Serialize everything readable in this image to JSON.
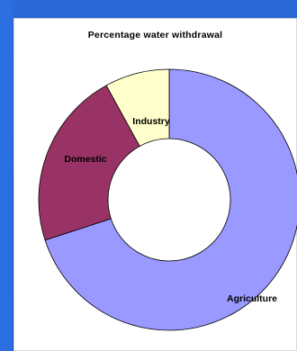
{
  "chart_data": {
    "type": "pie",
    "variant": "donut",
    "title": "Percentage water withdrawal",
    "categories": [
      "Agriculture",
      "Domestic",
      "Industry"
    ],
    "values": [
      70,
      22,
      8
    ],
    "unit": "%",
    "colors": [
      "#9999ff",
      "#993366",
      "#ffffcc"
    ],
    "legend": "none"
  }
}
